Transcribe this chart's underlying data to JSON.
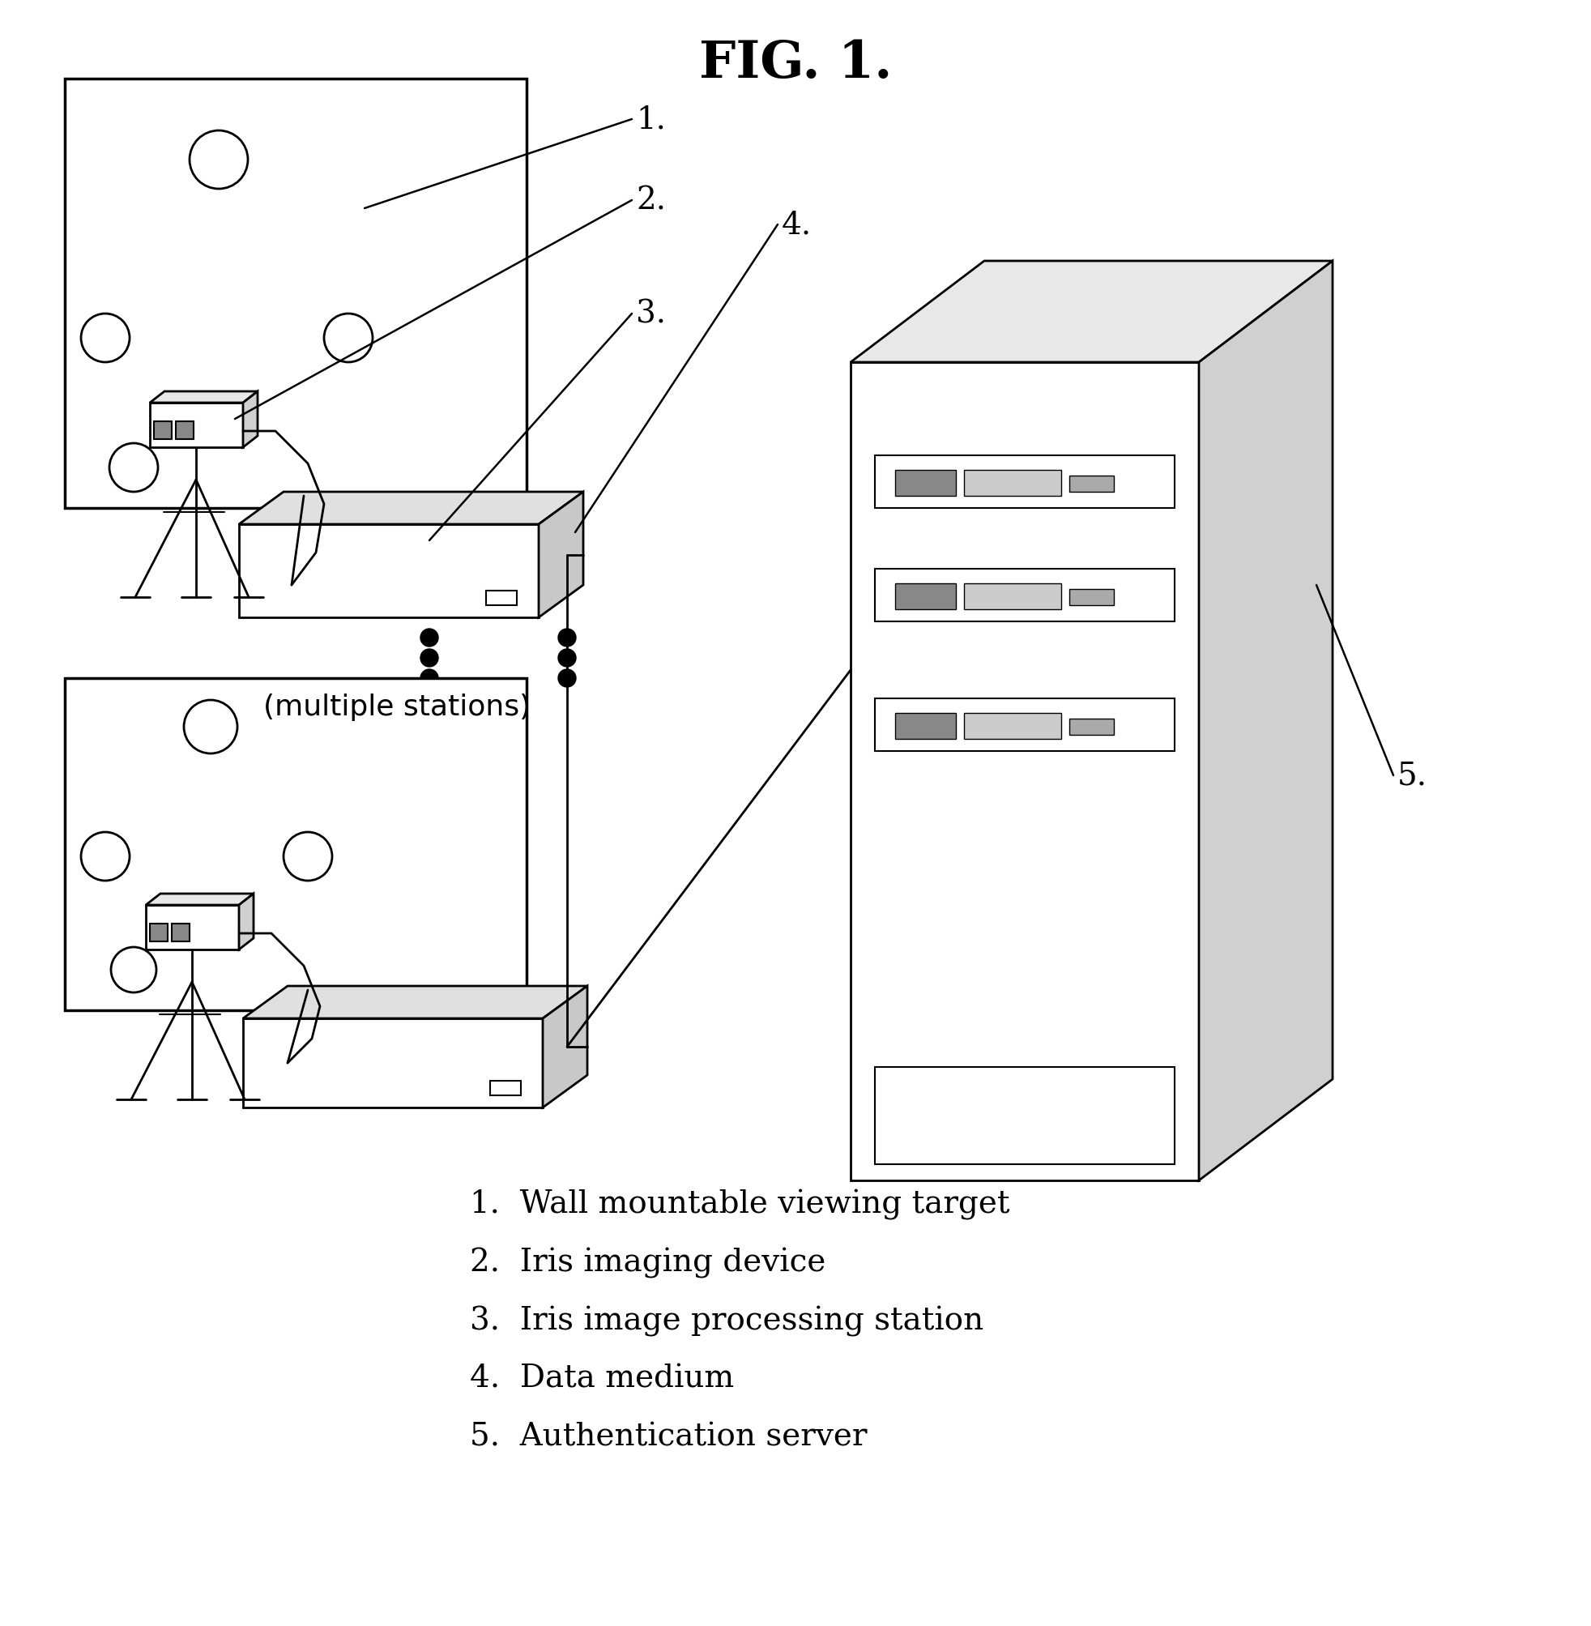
{
  "title": "FIG. 1.",
  "bg_color": "#ffffff",
  "text_color": "#000000",
  "legend": [
    "1.  Wall mountable viewing target",
    "2.  Iris imaging device",
    "3.  Iris image processing station",
    "4.  Data medium",
    "5.  Authentication server"
  ],
  "multiple_stations_text": "(multiple stations)"
}
